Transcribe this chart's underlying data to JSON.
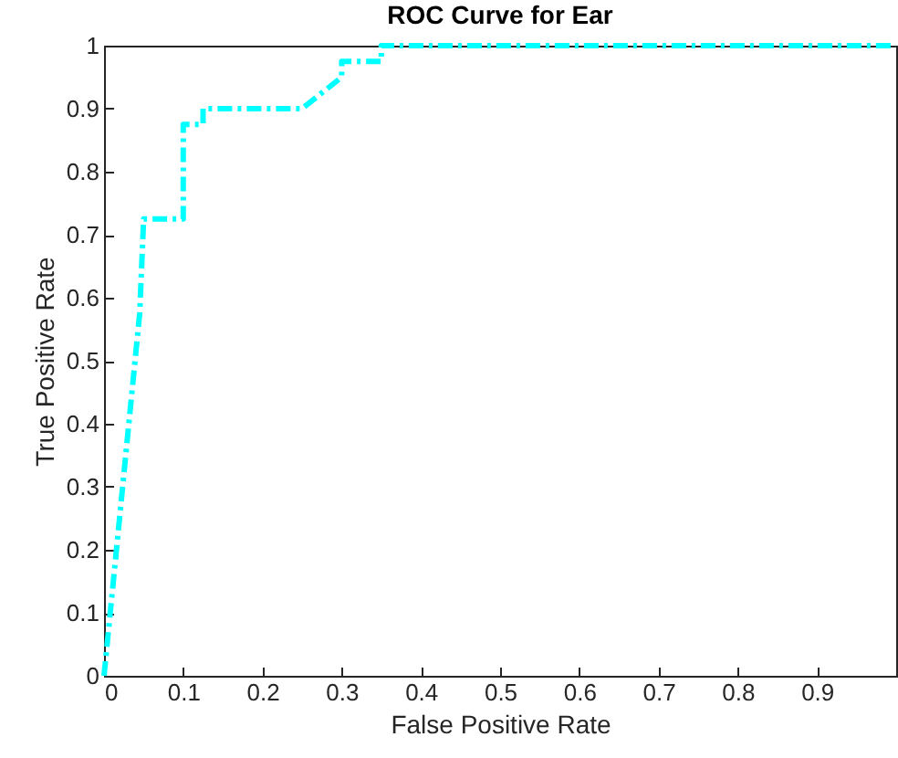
{
  "chart_data": {
    "type": "line",
    "title": "ROC Curve for Ear",
    "xlabel": "False Positive Rate",
    "ylabel": "True Positive Rate",
    "x": [
      0,
      0.045,
      0.05,
      0.1,
      0.1,
      0.125,
      0.125,
      0.25,
      0.3,
      0.3,
      0.35,
      0.35,
      1
    ],
    "series": [
      {
        "color": "#00ffff",
        "values": [
          0,
          0.575,
          0.725,
          0.725,
          0.875,
          0.875,
          0.9,
          0.9,
          0.95,
          0.975,
          0.975,
          1,
          1
        ]
      }
    ],
    "xlim": [
      0,
      1
    ],
    "ylim": [
      0,
      1
    ],
    "xticks": [
      {
        "value": 0,
        "label": "0"
      },
      0.1,
      0.2,
      0.3,
      0.4,
      0.5,
      0.6,
      0.7,
      0.8,
      0.9
    ],
    "yticks": [
      0,
      0.1,
      0.2,
      0.3,
      0.4,
      0.5,
      0.6,
      0.7,
      0.8,
      0.9,
      1
    ],
    "grid": false,
    "marker": "none",
    "line_style": "dashed"
  }
}
